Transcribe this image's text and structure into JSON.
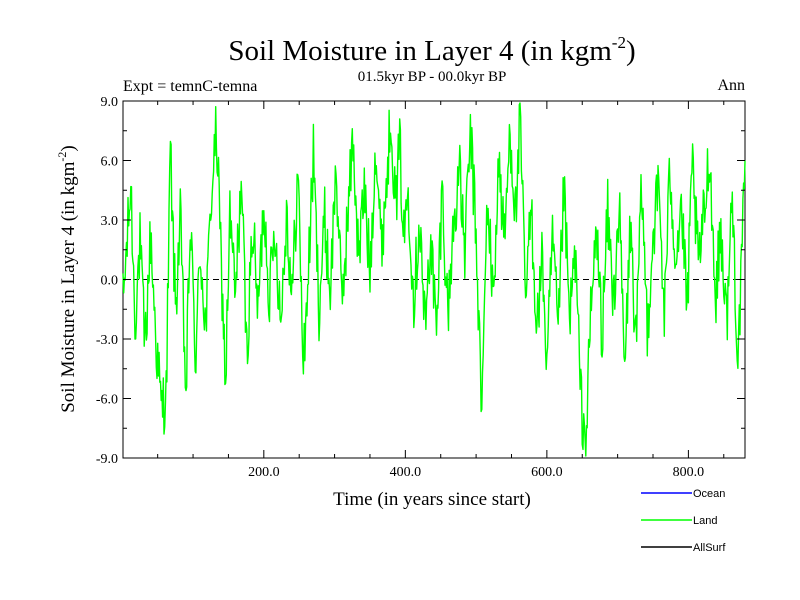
{
  "chart_data": {
    "type": "line",
    "title": "Soil Moisture in Layer 4 (in kgm",
    "title_sup": "-2",
    "title_close": ")",
    "subtitle": "01.5kyr BP - 00.0kyr BP",
    "left_label": "Expt = temnC-temna",
    "right_label": "Ann",
    "xlabel": "Time (in years since start)",
    "ylabel": "Soil Moisture in Layer 4 (in kgm",
    "ylabel_sup": "-2",
    "ylabel_close": ")",
    "xlim": [
      1,
      880
    ],
    "ylim": [
      -9.0,
      9.0
    ],
    "x_ticks": [
      200,
      400,
      600,
      800
    ],
    "x_tick_labels": [
      "200.0",
      "400.0",
      "600.0",
      "800.0"
    ],
    "y_ticks": [
      -9,
      -6,
      -3,
      0,
      3,
      6,
      9
    ],
    "y_tick_labels": [
      "-9.0",
      "-6.0",
      "-3.0",
      "0.0",
      "3.0",
      "6.0",
      "9.0"
    ],
    "zero_line": true,
    "series": [
      {
        "name": "Ocean",
        "color": "#0000ff",
        "values": []
      },
      {
        "name": "Land",
        "color": "#00ff00",
        "anchors": [
          [
            1,
            -1.2
          ],
          [
            8,
            2.5
          ],
          [
            12,
            4.8
          ],
          [
            18,
            -2.0
          ],
          [
            25,
            1.8
          ],
          [
            32,
            -3.5
          ],
          [
            40,
            2.2
          ],
          [
            48,
            -3.2
          ],
          [
            55,
            -6.5
          ],
          [
            62,
            -5.8
          ],
          [
            68,
            6.6
          ],
          [
            75,
            -1.5
          ],
          [
            82,
            3.0
          ],
          [
            90,
            -6.0
          ],
          [
            96,
            2.8
          ],
          [
            104,
            -4.2
          ],
          [
            110,
            1.6
          ],
          [
            118,
            -2.5
          ],
          [
            126,
            4.5
          ],
          [
            133,
            7.5
          ],
          [
            140,
            0.5
          ],
          [
            146,
            -5.2
          ],
          [
            152,
            3.2
          ],
          [
            160,
            -1.0
          ],
          [
            168,
            5.2
          ],
          [
            176,
            -3.8
          ],
          [
            184,
            2.8
          ],
          [
            192,
            -1.6
          ],
          [
            200,
            4.0
          ],
          [
            208,
            -0.8
          ],
          [
            216,
            2.6
          ],
          [
            224,
            -2.2
          ],
          [
            232,
            3.5
          ],
          [
            240,
            -1.0
          ],
          [
            248,
            5.5
          ],
          [
            256,
            -4.3
          ],
          [
            264,
            1.2
          ],
          [
            270,
            6.2
          ],
          [
            278,
            -1.4
          ],
          [
            286,
            3.0
          ],
          [
            294,
            -0.6
          ],
          [
            302,
            5.8
          ],
          [
            310,
            -1.2
          ],
          [
            318,
            2.8
          ],
          [
            326,
            7.2
          ],
          [
            334,
            1.0
          ],
          [
            342,
            4.6
          ],
          [
            350,
            0.4
          ],
          [
            358,
            7.0
          ],
          [
            366,
            1.6
          ],
          [
            374,
            5.2
          ],
          [
            380,
            8.6
          ],
          [
            386,
            3.4
          ],
          [
            392,
            6.8
          ],
          [
            398,
            2.0
          ],
          [
            404,
            4.8
          ],
          [
            412,
            -1.0
          ],
          [
            420,
            3.2
          ],
          [
            428,
            -2.6
          ],
          [
            436,
            2.4
          ],
          [
            444,
            -3.0
          ],
          [
            452,
            4.6
          ],
          [
            460,
            -1.8
          ],
          [
            468,
            2.6
          ],
          [
            476,
            5.6
          ],
          [
            484,
            1.4
          ],
          [
            492,
            7.4
          ],
          [
            500,
            2.2
          ],
          [
            508,
            -6.8
          ],
          [
            516,
            4.2
          ],
          [
            524,
            -1.2
          ],
          [
            532,
            6.0
          ],
          [
            540,
            1.8
          ],
          [
            548,
            7.6
          ],
          [
            556,
            3.2
          ],
          [
            562,
            8.0
          ],
          [
            570,
            -1.0
          ],
          [
            578,
            3.6
          ],
          [
            586,
            -2.4
          ],
          [
            594,
            1.2
          ],
          [
            600,
            -4.8
          ],
          [
            608,
            2.2
          ],
          [
            616,
            -3.0
          ],
          [
            624,
            4.6
          ],
          [
            632,
            -2.2
          ],
          [
            640,
            1.4
          ],
          [
            648,
            -6.0
          ],
          [
            655,
            -8.4
          ],
          [
            662,
            -1.8
          ],
          [
            670,
            2.6
          ],
          [
            678,
            -2.8
          ],
          [
            686,
            3.4
          ],
          [
            694,
            -1.2
          ],
          [
            702,
            3.8
          ],
          [
            710,
            -4.8
          ],
          [
            718,
            2.8
          ],
          [
            726,
            -3.4
          ],
          [
            734,
            4.6
          ],
          [
            742,
            -2.4
          ],
          [
            750,
            2.2
          ],
          [
            758,
            4.8
          ],
          [
            766,
            -1.8
          ],
          [
            774,
            5.6
          ],
          [
            782,
            1.2
          ],
          [
            790,
            3.8
          ],
          [
            798,
            -1.6
          ],
          [
            806,
            5.8
          ],
          [
            814,
            0.6
          ],
          [
            822,
            3.2
          ],
          [
            830,
            6.6
          ],
          [
            838,
            -1.0
          ],
          [
            846,
            2.6
          ],
          [
            854,
            -2.2
          ],
          [
            862,
            4.2
          ],
          [
            870,
            -4.0
          ],
          [
            876,
            1.2
          ],
          [
            880,
            6.0
          ]
        ]
      },
      {
        "name": "AllSurf",
        "color": "#000000",
        "values": []
      }
    ],
    "legend_placement": "bottom-right"
  }
}
